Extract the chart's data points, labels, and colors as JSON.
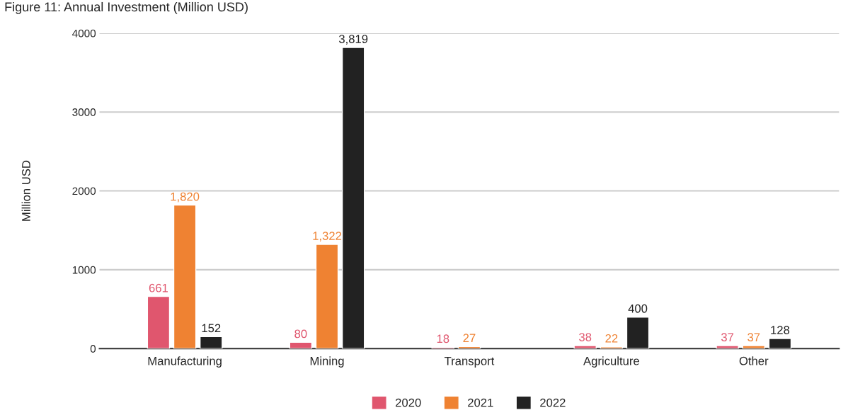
{
  "chart_data": {
    "type": "bar",
    "title": "Figure 11: Annual Investment (Million USD)",
    "ylabel": "Million USD",
    "categories": [
      "Manufacturing",
      "Mining",
      "Transport",
      "Agriculture",
      "Other"
    ],
    "series": [
      {
        "name": "2020",
        "color": "#e0566e",
        "values": [
          661,
          80,
          18,
          38,
          37
        ],
        "value_labels": [
          "661",
          "80",
          "18",
          "38",
          "37"
        ]
      },
      {
        "name": "2021",
        "color": "#ef8232",
        "values": [
          1820,
          1322,
          27,
          22,
          37
        ],
        "value_labels": [
          "1,820",
          "1,322",
          "27",
          "22",
          "37"
        ]
      },
      {
        "name": "2022",
        "color": "#222222",
        "values": [
          152,
          3819,
          null,
          400,
          128
        ],
        "value_labels": [
          "152",
          "3,819",
          null,
          "400",
          "128"
        ]
      }
    ],
    "ylim": [
      0,
      4000
    ],
    "yticks": [
      0,
      1000,
      2000,
      3000,
      4000
    ],
    "grid": "y",
    "legend": "bottom"
  }
}
